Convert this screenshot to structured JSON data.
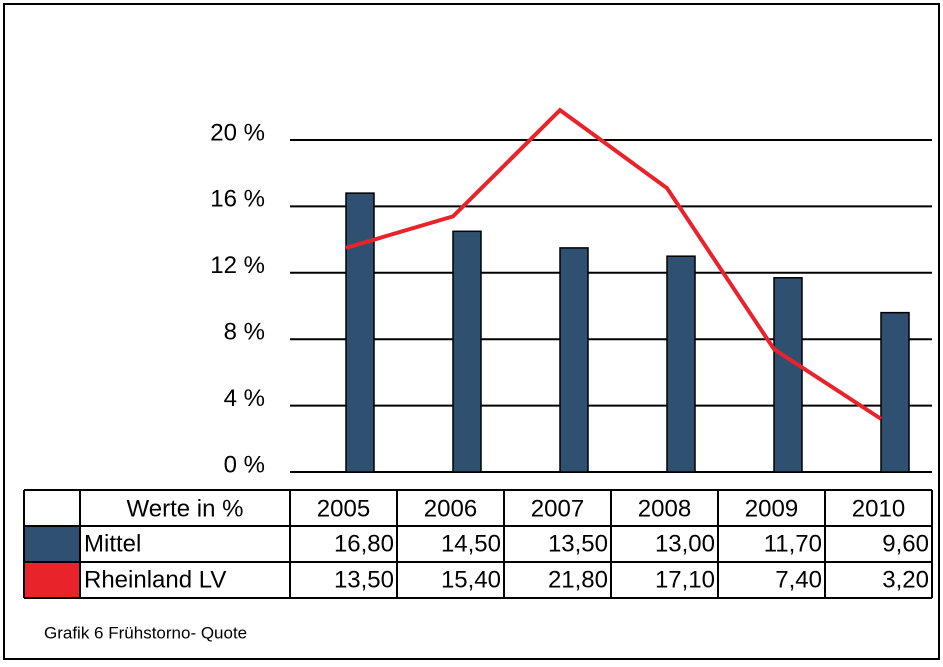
{
  "chart_data": {
    "type": "bar-line",
    "table_header": "Werte in %",
    "caption": "Grafik 6 Frühstorno- Quote",
    "categories": [
      "2005",
      "2006",
      "2007",
      "2008",
      "2009",
      "2010"
    ],
    "series": [
      {
        "name": "Mittel",
        "type": "bar",
        "color": "#2f5070",
        "values": [
          16.8,
          14.5,
          13.5,
          13.0,
          11.7,
          9.6
        ],
        "value_labels": [
          "16,80",
          "14,50",
          "13,50",
          "13,00",
          "11,70",
          "9,60"
        ]
      },
      {
        "name": "Rheinland LV",
        "type": "line",
        "color": "#e8232a",
        "values": [
          13.5,
          15.4,
          21.8,
          17.1,
          7.4,
          3.2
        ],
        "value_labels": [
          "13,50",
          "15,40",
          "21,80",
          "17,10",
          "7,40",
          "3,20"
        ]
      }
    ],
    "ylim": [
      0,
      24
    ],
    "yticks": [
      {
        "value": 0,
        "label": "0 %"
      },
      {
        "value": 4,
        "label": "4 %"
      },
      {
        "value": 8,
        "label": "8 %"
      },
      {
        "value": 12,
        "label": "12 %"
      },
      {
        "value": 16,
        "label": "16 %"
      },
      {
        "value": 20,
        "label": "20 %"
      }
    ],
    "grid": true
  }
}
